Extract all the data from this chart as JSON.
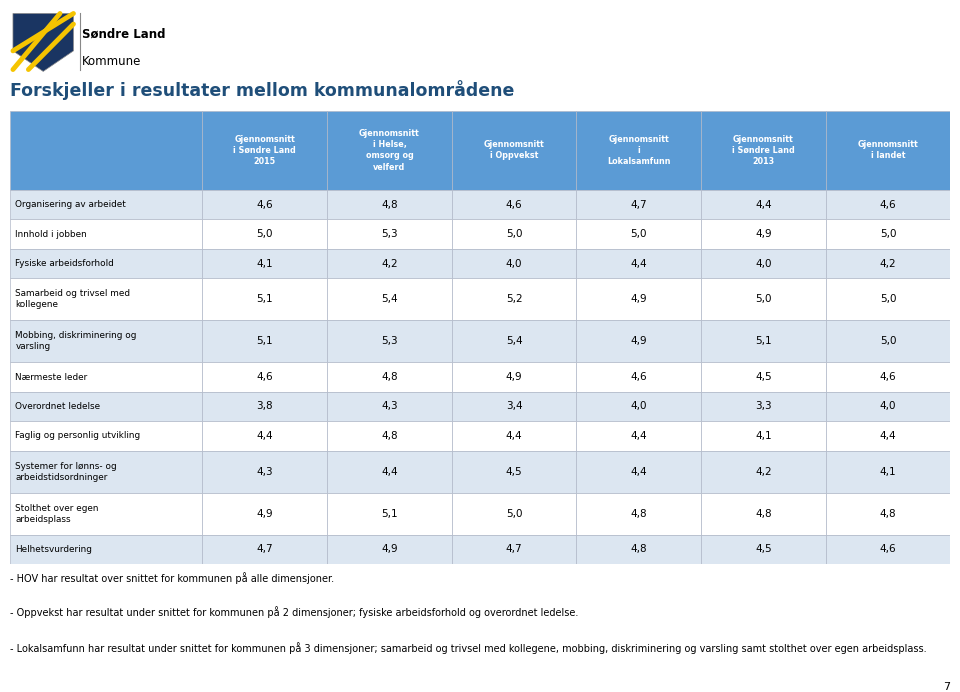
{
  "title": "Forskjeller i resultater mellom kommunalområdene",
  "col_headers": [
    "Gjennomsnitt\ni Søndre Land\n2015",
    "Gjennomsnitt\ni Helse,\nomsorg og\nvelferd",
    "Gjennomsnitt\ni Oppvekst",
    "Gjennomsnitt\ni\nLokalsamfunn",
    "Gjennomsnitt\ni Søndre Land\n2013",
    "Gjennomsnitt\ni landet"
  ],
  "row_labels": [
    "Organisering av arbeidet",
    "Innhold i jobben",
    "Fysiske arbeidsforhold",
    "Samarbeid og trivsel med\nkollegene",
    "Mobbing, diskriminering og\nvarsling",
    "Nærmeste leder",
    "Overordnet ledelse",
    "Faglig og personlig utvikling",
    "Systemer for lønns- og\narbeidstidsordninger",
    "Stolthet over egen\narbeidsplass",
    "Helhetsvurdering"
  ],
  "data": [
    [
      4.6,
      4.8,
      4.6,
      4.7,
      4.4,
      4.6
    ],
    [
      5.0,
      5.3,
      5.0,
      5.0,
      4.9,
      5.0
    ],
    [
      4.1,
      4.2,
      4.0,
      4.4,
      4.0,
      4.2
    ],
    [
      5.1,
      5.4,
      5.2,
      4.9,
      5.0,
      5.0
    ],
    [
      5.1,
      5.3,
      5.4,
      4.9,
      5.1,
      5.0
    ],
    [
      4.6,
      4.8,
      4.9,
      4.6,
      4.5,
      4.6
    ],
    [
      3.8,
      4.3,
      3.4,
      4.0,
      3.3,
      4.0
    ],
    [
      4.4,
      4.8,
      4.4,
      4.4,
      4.1,
      4.4
    ],
    [
      4.3,
      4.4,
      4.5,
      4.4,
      4.2,
      4.1
    ],
    [
      4.9,
      5.1,
      5.0,
      4.8,
      4.8,
      4.8
    ],
    [
      4.7,
      4.9,
      4.7,
      4.8,
      4.5,
      4.6
    ]
  ],
  "footnotes": [
    "- HOV har resultat over snittet for kommunen på alle dimensjoner.",
    "- Oppvekst har resultat under snittet for kommunen på 2 dimensjoner; fysiske arbeidsforhold og overordnet ledelse.",
    "- Lokalsamfunn har resultat under snittet for kommunen på 3 dimensjoner; samarbeid og trivsel med kollegene, mobbing, diskriminering og varsling samt stolthet over egen arbeidsplass."
  ],
  "header_bg": "#5b9bd5",
  "header_text": "#ffffff",
  "row_bg_even": "#dce6f1",
  "row_bg_odd": "#ffffff",
  "border_color": "#b0b8c8",
  "text_color": "#000000",
  "title_color": "#1f4e79",
  "page_number": "7",
  "logo_shield_color": "#1a3562",
  "logo_yellow": "#f5c400"
}
